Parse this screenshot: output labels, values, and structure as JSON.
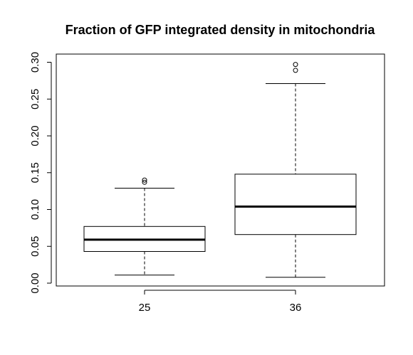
{
  "chart_data": {
    "type": "boxplot",
    "title": "Fraction of GFP integrated density in mitochondria",
    "xlabel": "",
    "ylabel": "",
    "categories": [
      "25",
      "36"
    ],
    "ylim": [
      0.0,
      0.3
    ],
    "yticks": [
      "0.00",
      "0.05",
      "0.10",
      "0.15",
      "0.20",
      "0.25",
      "0.30"
    ],
    "ytick_values": [
      0.0,
      0.05,
      0.1,
      0.15,
      0.2,
      0.25,
      0.3
    ],
    "boxes": [
      {
        "category": "25",
        "whisker_low": 0.011,
        "q1": 0.043,
        "median": 0.059,
        "q3": 0.077,
        "whisker_high": 0.129,
        "outliers": [
          0.137,
          0.14
        ]
      },
      {
        "category": "36",
        "whisker_low": 0.008,
        "q1": 0.066,
        "median": 0.104,
        "q3": 0.148,
        "whisker_high": 0.271,
        "outliers": [
          0.289,
          0.297
        ]
      }
    ],
    "grid": false,
    "legend": "none"
  },
  "colors": {
    "stroke": "#000000",
    "background": "#ffffff"
  }
}
